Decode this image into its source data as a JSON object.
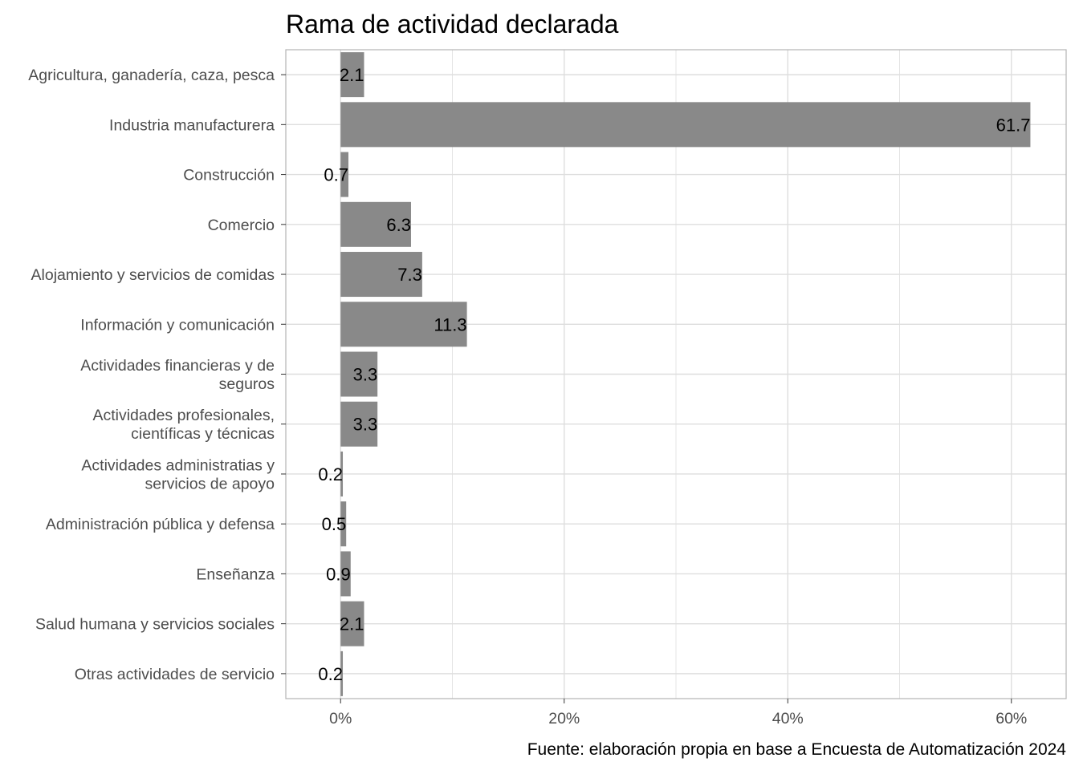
{
  "chart_data": {
    "type": "bar",
    "orientation": "horizontal",
    "title": "Rama de actividad declarada",
    "caption": "Fuente: elaboración propia en base a Encuesta de Automatización 2024",
    "categories": [
      [
        "Agricultura, ganadería, caza, pesca"
      ],
      [
        "Industria manufacturera"
      ],
      [
        "Construcción"
      ],
      [
        "Comercio"
      ],
      [
        "Alojamiento y servicios de comidas"
      ],
      [
        "Información y comunicación"
      ],
      [
        "Actividades financieras y de",
        "seguros"
      ],
      [
        "Actividades profesionales,",
        "científicas y técnicas"
      ],
      [
        "Actividades administratias y",
        "servicios de apoyo"
      ],
      [
        "Administración pública y defensa"
      ],
      [
        "Enseñanza"
      ],
      [
        "Salud humana y servicios sociales"
      ],
      [
        "Otras actividades de servicio"
      ]
    ],
    "values": [
      2.1,
      61.7,
      0.7,
      6.3,
      7.3,
      11.3,
      3.3,
      3.3,
      0.2,
      0.5,
      0.9,
      2.1,
      0.2
    ],
    "value_labels": [
      "2.1",
      "61.7",
      "0.7",
      "6.3",
      "7.3",
      "11.3",
      "3.3",
      "3.3",
      "0.2",
      "0.5",
      "0.9",
      "2.1",
      "0.2"
    ],
    "xticks": [
      0,
      20,
      40,
      60
    ],
    "xtick_labels": [
      "0%",
      "20%",
      "40%",
      "60%"
    ],
    "xlim": [
      -4.9,
      64.9
    ],
    "grid": true,
    "bar_color": "#898989",
    "grid_color": "#dedede",
    "panel_border_color": "#b3b3b3"
  }
}
